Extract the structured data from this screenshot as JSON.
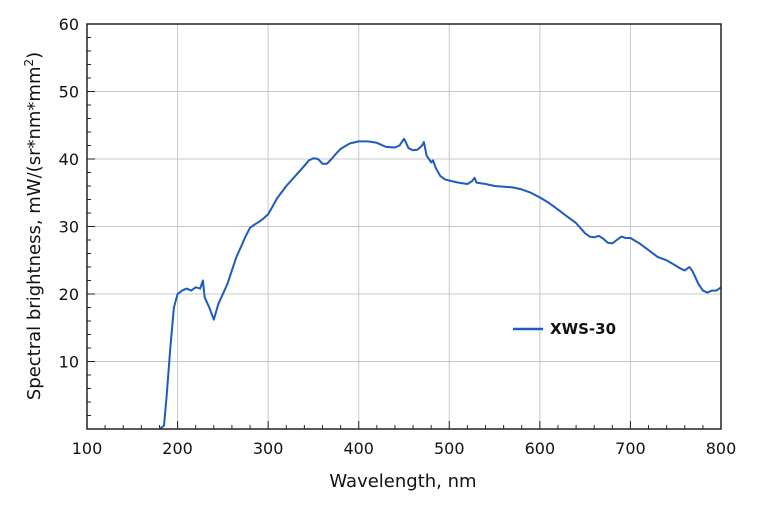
{
  "chart_data": {
    "type": "line",
    "title": "",
    "xlabel": "Wavelength, nm",
    "ylabel_main": "Spectral brightness,  mW/(sr*nm*mm",
    "ylabel_sup": "2",
    "ylabel_close": ")",
    "xlim": [
      100,
      800
    ],
    "ylim": [
      0,
      60
    ],
    "xticks": [
      100,
      200,
      300,
      400,
      500,
      600,
      700,
      800
    ],
    "yticks": [
      10,
      20,
      30,
      40,
      50,
      60
    ],
    "grid": true,
    "legend_position": "right-middle",
    "series": [
      {
        "name": "XWS-30",
        "color": "#1f5bbf",
        "x": [
          180,
          185,
          188,
          192,
          196,
          200,
          205,
          210,
          215,
          220,
          225,
          228,
          230,
          235,
          240,
          245,
          250,
          255,
          260,
          265,
          270,
          275,
          280,
          285,
          290,
          295,
          300,
          305,
          310,
          320,
          330,
          340,
          345,
          350,
          355,
          360,
          365,
          370,
          375,
          380,
          390,
          400,
          410,
          420,
          430,
          440,
          445,
          450,
          452,
          455,
          460,
          465,
          470,
          472,
          475,
          480,
          482,
          485,
          490,
          495,
          500,
          510,
          520,
          525,
          528,
          530,
          540,
          550,
          560,
          570,
          580,
          590,
          600,
          610,
          620,
          630,
          640,
          650,
          655,
          660,
          665,
          670,
          675,
          680,
          685,
          690,
          695,
          700,
          710,
          720,
          730,
          740,
          750,
          755,
          760,
          765,
          768,
          770,
          775,
          780,
          785,
          790,
          795,
          800
        ],
        "y": [
          0,
          0.5,
          5,
          12,
          18,
          20,
          20.5,
          20.8,
          20.5,
          21,
          20.8,
          22,
          19.5,
          18,
          16.2,
          18.5,
          20,
          21.5,
          23.5,
          25.5,
          27,
          28.5,
          29.8,
          30.3,
          30.7,
          31.2,
          31.8,
          33,
          34.2,
          36,
          37.5,
          39,
          39.8,
          40.1,
          40,
          39.3,
          39.3,
          40,
          40.8,
          41.5,
          42.3,
          42.6,
          42.6,
          42.4,
          41.8,
          41.7,
          42,
          43,
          42.5,
          41.6,
          41.3,
          41.4,
          42,
          42.5,
          40.5,
          39.5,
          39.8,
          38.7,
          37.5,
          37,
          36.8,
          36.5,
          36.3,
          36.7,
          37.2,
          36.5,
          36.3,
          36,
          35.9,
          35.8,
          35.5,
          35,
          34.3,
          33.5,
          32.5,
          31.5,
          30.5,
          29,
          28.5,
          28.4,
          28.6,
          28.2,
          27.6,
          27.5,
          28,
          28.5,
          28.3,
          28.3,
          27.5,
          26.5,
          25.5,
          25,
          24.2,
          23.8,
          23.5,
          24,
          23.5,
          23,
          21.5,
          20.5,
          20.2,
          20.5,
          20.5,
          21
        ]
      }
    ]
  }
}
